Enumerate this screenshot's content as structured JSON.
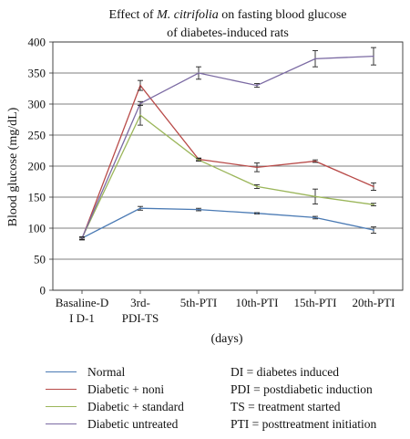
{
  "chart_data": {
    "type": "line",
    "title_prefix": "Effect of ",
    "title_italic": "M. citrifolia",
    "title_suffix": " on fasting blood glucose",
    "title_line2": "of diabetes-induced rats",
    "ylabel": "Blood glucose (mg/dL)",
    "xlabel": "(days)",
    "ylim": [
      0,
      400
    ],
    "yticks": [
      0,
      50,
      100,
      150,
      200,
      250,
      300,
      350,
      400
    ],
    "grid": true,
    "categories": [
      [
        "Basaline-D",
        "I D-1"
      ],
      [
        "3rd-",
        "PDI-TS"
      ],
      [
        "5th-PTI"
      ],
      [
        "10th-PTI"
      ],
      [
        "15th-PTI"
      ],
      [
        "20th-PTI"
      ]
    ],
    "series": [
      {
        "name": "Normal",
        "color": "#4a7ab4",
        "values": [
          84,
          132,
          130,
          124,
          117,
          97
        ],
        "errors": [
          2,
          3,
          2,
          1,
          2,
          5
        ]
      },
      {
        "name": "Diabetic + noni",
        "color": "#b84a48",
        "values": [
          83,
          330,
          211,
          198,
          208,
          167
        ],
        "errors": [
          2,
          8,
          2,
          7,
          2,
          6
        ]
      },
      {
        "name": "Diabetic + standard",
        "color": "#9bb65a",
        "values": [
          84,
          282,
          210,
          167,
          151,
          138
        ],
        "errors": [
          2,
          16,
          2,
          3,
          12,
          2
        ]
      },
      {
        "name": "Diabetic untreated",
        "color": "#7b6aa3",
        "values": [
          84,
          301,
          350,
          330,
          373,
          377
        ],
        "errors": [
          2,
          3,
          10,
          3,
          13,
          14
        ]
      }
    ],
    "legend_placement": "bottom",
    "abbreviations": [
      "DI = diabetes induced",
      "PDI = postdiabetic induction",
      "TS = treatment started",
      "PTI = posttreatment initiation"
    ]
  }
}
